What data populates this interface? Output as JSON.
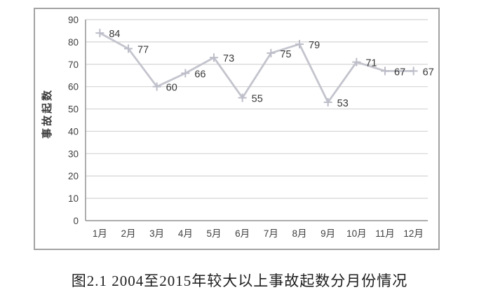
{
  "figure": {
    "caption": "图2.1 2004至2015年较大以上事故起数分月份情况"
  },
  "chart_data": {
    "type": "line",
    "categories": [
      "1月",
      "2月",
      "3月",
      "4月",
      "5月",
      "6月",
      "7月",
      "8月",
      "9月",
      "10月",
      "11月",
      "12月"
    ],
    "series": [
      {
        "name": "事故起数",
        "values": [
          84,
          77,
          60,
          66,
          73,
          55,
          75,
          79,
          53,
          71,
          67,
          67
        ]
      }
    ],
    "title": "",
    "xlabel": "",
    "ylabel": "事故起数",
    "ylim": [
      0,
      90
    ],
    "ytick_step": 10,
    "yticks": [
      0,
      10,
      20,
      30,
      40,
      50,
      60,
      70,
      80,
      90
    ],
    "grid": "horizontal",
    "legend": "none",
    "data_labels": true,
    "marker": "plus",
    "colors": {
      "line": "#c3c4cd",
      "marker": "#bcbdc8",
      "grid": "#d4d4d4",
      "axis": "#9f9f9f",
      "tick_text": "#3f3f3f",
      "data_label_text": "#383838",
      "frame": "#a2a2a2"
    }
  }
}
